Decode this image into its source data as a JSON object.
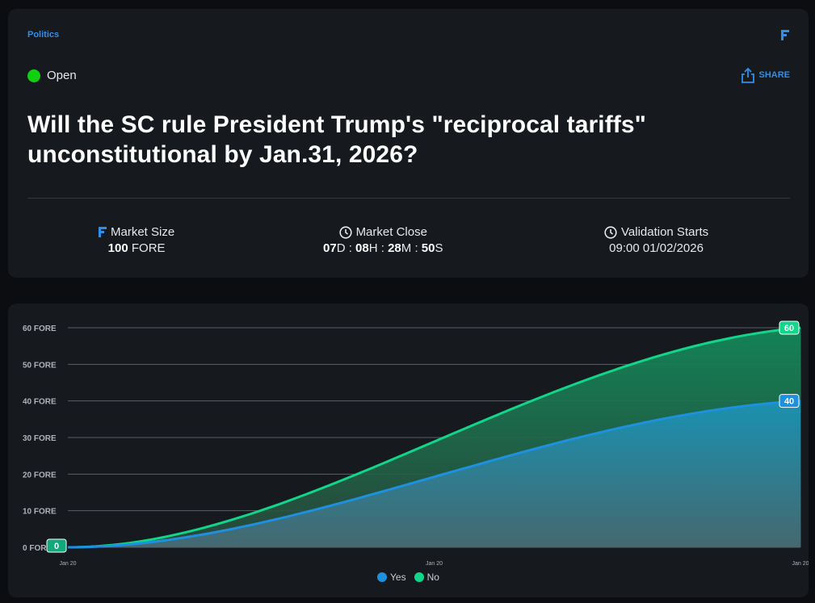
{
  "header": {
    "category": "Politics",
    "brand_icon": "fore-logo-icon",
    "status": "Open",
    "status_color": "#10d10f",
    "share_label": "SHARE",
    "accent": "#2f8fe8"
  },
  "market": {
    "title": "Will the SC rule President Trump's \"reciprocal tariffs\" unconstitutional by Jan.31, 2026?",
    "size_label": "Market Size",
    "size_value": "100",
    "size_unit": "FORE",
    "close_label": "Market Close",
    "close_days": "07",
    "close_hours": "08",
    "close_minutes": "28",
    "close_seconds": "50",
    "close_sep": ":",
    "unit_d": "D",
    "unit_h": "H",
    "unit_m": "M",
    "unit_s": "S",
    "validation_label": "Validation Starts",
    "validation_value": "09:00 01/02/2026"
  },
  "chart_data": {
    "type": "area",
    "ylim": [
      0,
      60
    ],
    "yticks": [
      "0 FORE",
      "10 FORE",
      "20 FORE",
      "30 FORE",
      "40 FORE",
      "50 FORE",
      "60 FORE"
    ],
    "xticks": [
      "Jan 20",
      "Jan 20",
      "Jan 20"
    ],
    "grid": true,
    "legend_position": "bottom",
    "start_label": "0",
    "series": [
      {
        "name": "Yes",
        "color": "#1e90e0",
        "start": 0,
        "end": 40,
        "end_label": "40"
      },
      {
        "name": "No",
        "color": "#10d68a",
        "start": 0,
        "end": 60,
        "end_label": "60"
      }
    ]
  }
}
